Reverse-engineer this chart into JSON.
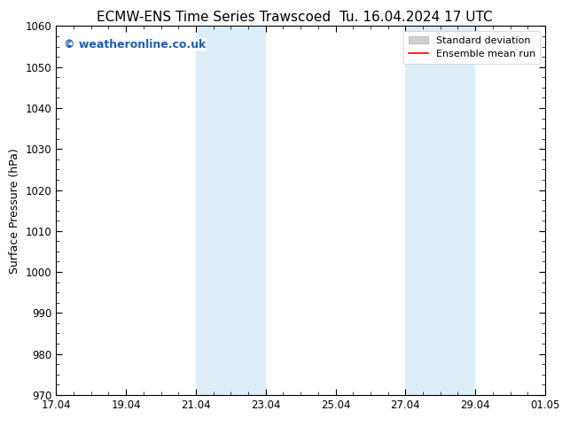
{
  "title_left": "ECMW-ENS Time Series Trawscoed",
  "title_right": "Tu. 16.04.2024 17 UTC",
  "ylabel": "Surface Pressure (hPa)",
  "ylim": [
    970,
    1060
  ],
  "yticks": [
    970,
    980,
    990,
    1000,
    1010,
    1020,
    1030,
    1040,
    1050,
    1060
  ],
  "xtick_labels": [
    "17.04",
    "19.04",
    "21.04",
    "23.04",
    "25.04",
    "27.04",
    "29.04",
    "01.05"
  ],
  "xtick_positions": [
    0,
    2,
    4,
    6,
    8,
    10,
    12,
    14
  ],
  "shaded_bands": [
    {
      "x_start": 4,
      "x_end": 6,
      "color": "#ddeef8"
    },
    {
      "x_start": 10,
      "x_end": 12,
      "color": "#ddeef8"
    }
  ],
  "watermark_text": "© weatheronline.co.uk",
  "watermark_color": "#1a5fb4",
  "watermark_fontsize": 9,
  "legend_std_color": "#d0d0d0",
  "legend_mean_color": "#ff0000",
  "background_color": "#ffffff",
  "title_fontsize": 11,
  "axis_fontsize": 9,
  "tick_fontsize": 8.5
}
